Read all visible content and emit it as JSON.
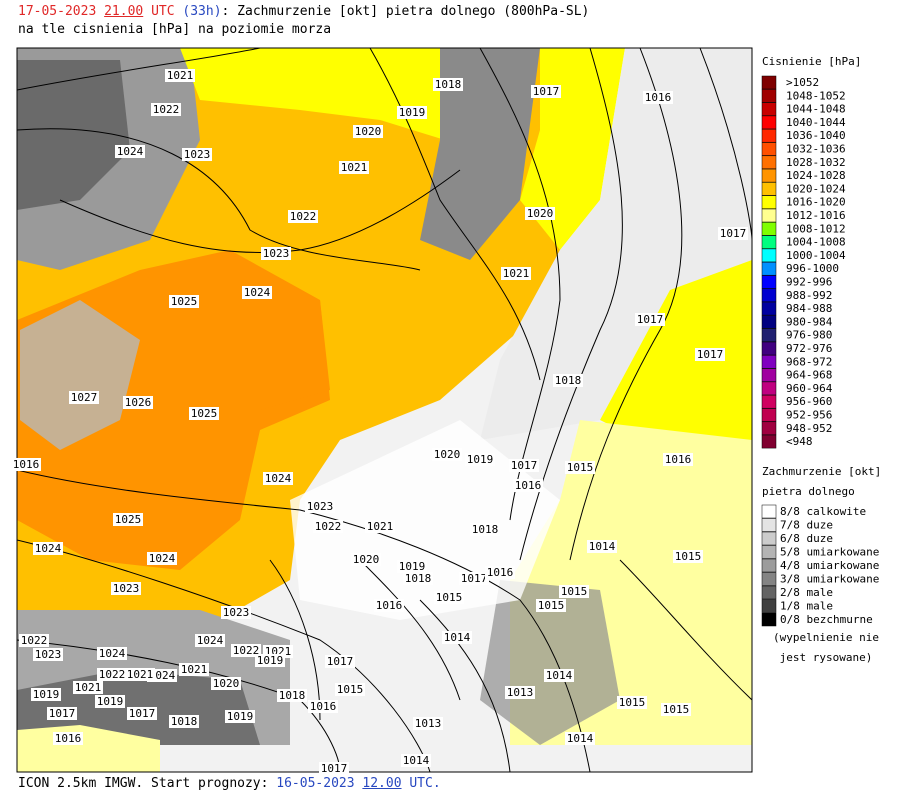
{
  "header": {
    "date": "17-05-2023",
    "hour": "21.00",
    "utc": "UTC",
    "lead": "(33h)",
    "title": ": Zachmurzenie [okt] pietra dolnego (800hPa-SL)",
    "subtitle": "na tle cisnienia [hPa] na poziomie morza"
  },
  "footer": {
    "model": "ICON 2.5km IMGW. Start prognozy:",
    "date": "16-05-2023",
    "hour": "12.00",
    "utc": "UTC."
  },
  "pressure_legend": {
    "title": "Cisnienie [hPa]",
    "entries": [
      {
        "label": ">1052",
        "color": "#7f0000"
      },
      {
        "label": "1048-1052",
        "color": "#a00000"
      },
      {
        "label": "1044-1048",
        "color": "#c80000"
      },
      {
        "label": "1040-1044",
        "color": "#ff0000"
      },
      {
        "label": "1036-1040",
        "color": "#ff2800"
      },
      {
        "label": "1032-1036",
        "color": "#ff5000"
      },
      {
        "label": "1028-1032",
        "color": "#ff7000"
      },
      {
        "label": "1024-1028",
        "color": "#ff9400"
      },
      {
        "label": "1020-1024",
        "color": "#ffc000"
      },
      {
        "label": "1016-1020",
        "color": "#ffff00"
      },
      {
        "label": "1012-1016",
        "color": "#ffff90"
      },
      {
        "label": "1008-1012",
        "color": "#80ff00"
      },
      {
        "label": "1004-1008",
        "color": "#00ff80"
      },
      {
        "label": "1000-1004",
        "color": "#00ffff"
      },
      {
        "label": "996-1000",
        "color": "#0090ff"
      },
      {
        "label": "992-996",
        "color": "#0000ff"
      },
      {
        "label": "988-992",
        "color": "#0000d0"
      },
      {
        "label": "984-988",
        "color": "#0000a0"
      },
      {
        "label": "980-984",
        "color": "#000080"
      },
      {
        "label": "976-980",
        "color": "#202070"
      },
      {
        "label": "972-976",
        "color": "#400080"
      },
      {
        "label": "968-972",
        "color": "#8000c0"
      },
      {
        "label": "964-968",
        "color": "#a000a0"
      },
      {
        "label": "960-964",
        "color": "#c00080"
      },
      {
        "label": "956-960",
        "color": "#d00060"
      },
      {
        "label": "952-956",
        "color": "#c00050"
      },
      {
        "label": "948-952",
        "color": "#a00040"
      },
      {
        "label": "<948",
        "color": "#800030"
      }
    ]
  },
  "cloud_legend": {
    "title": "Zachmurzenie [okt]",
    "subtitle": "pietra dolnego",
    "entries": [
      {
        "label": "8/8 calkowite",
        "color": "#ffffff"
      },
      {
        "label": "7/8 duze",
        "color": "#e4e4e4"
      },
      {
        "label": "6/8 duze",
        "color": "#cccccc"
      },
      {
        "label": "5/8 umiarkowane",
        "color": "#b4b4b4"
      },
      {
        "label": "4/8 umiarkowane",
        "color": "#9c9c9c"
      },
      {
        "label": "3/8 umiarkowane",
        "color": "#848484"
      },
      {
        "label": "2/8 male",
        "color": "#646464"
      },
      {
        "label": "1/8 male",
        "color": "#404040"
      },
      {
        "label": "0/8 bezchmurne",
        "color": "#000000"
      }
    ],
    "note_line1": "(wypelnienie nie",
    "note_line2": "jest rysowane)"
  },
  "map": {
    "isobar_labels": [
      "1021",
      "1018",
      "1017",
      "1016",
      "1022",
      "1019",
      "1020",
      "1024",
      "1023",
      "1021",
      "1022",
      "1020",
      "1017",
      "1023",
      "1024",
      "1021",
      "1025",
      "1017",
      "1017",
      "1018",
      "1027",
      "1026",
      "1025",
      "1020",
      "1019",
      "1016",
      "1017",
      "1015",
      "1016",
      "1016",
      "1024",
      "1023",
      "1025",
      "1022",
      "1021",
      "1018",
      "1014",
      "1024",
      "1024",
      "1020",
      "1019",
      "1015",
      "1018",
      "1017",
      "1016",
      "1023",
      "1015",
      "1015",
      "1016",
      "1015",
      "1023",
      "1014",
      "1022",
      "1024",
      "1023",
      "1024",
      "1022",
      "1021",
      "1019",
      "1017",
      "1021",
      "1024",
      "1022",
      "1021",
      "1014",
      "1020",
      "1021",
      "1015",
      "1019",
      "1013",
      "1018",
      "1019",
      "1015",
      "1015",
      "1016",
      "1017",
      "1017",
      "1018",
      "1019",
      "1013",
      "1016",
      "1014",
      "1014",
      "1017"
    ]
  }
}
